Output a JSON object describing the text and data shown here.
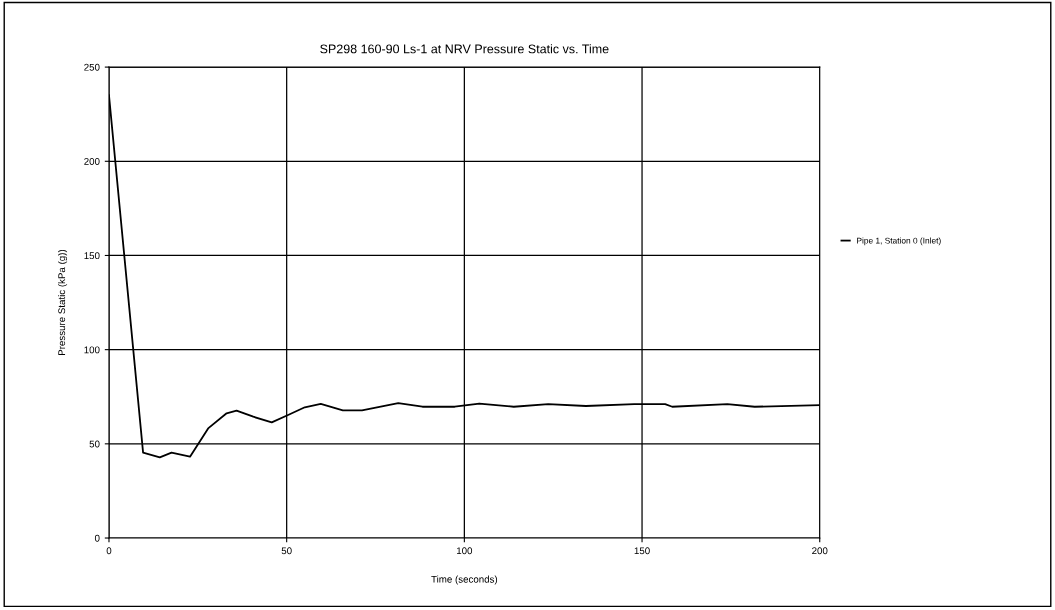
{
  "chart_data": {
    "type": "line",
    "title": "SP298 160-90 Ls-1 at NRV Pressure Static vs. Time",
    "xlabel": "Time (seconds)",
    "ylabel": "Pressure Static (kPa (g))",
    "series": [
      {
        "name": "Pipe 1, Station 0 (Inlet)",
        "color": "#000000",
        "x": [
          0,
          9.6,
          14.3,
          17.6,
          22.8,
          27.9,
          33.1,
          35.9,
          40.6,
          45.8,
          50.4,
          55.1,
          59.6,
          65.8,
          71.2,
          81.4,
          88.2,
          97.3,
          104.2,
          113.9,
          123.6,
          134.2,
          147.8,
          156.5,
          158.5,
          174,
          181.7,
          200
        ],
        "values": [
          235,
          45.3,
          42.8,
          45.3,
          43.2,
          58.2,
          66.2,
          67.6,
          64.4,
          61.4,
          65.3,
          69.4,
          71.2,
          67.8,
          67.8,
          71.6,
          69.7,
          69.7,
          71.4,
          69.7,
          71.1,
          70.1,
          71.1,
          71.1,
          69.7,
          71.1,
          69.7,
          70.5
        ]
      }
    ],
    "xlim": [
      0,
      200
    ],
    "ylim": [
      0,
      250
    ],
    "xticks": [
      0,
      50,
      100,
      150,
      200
    ],
    "yticks": [
      0,
      50,
      100,
      150,
      200,
      250
    ],
    "grid": true,
    "legend": "right",
    "marker": "none",
    "line_style": "solid"
  }
}
